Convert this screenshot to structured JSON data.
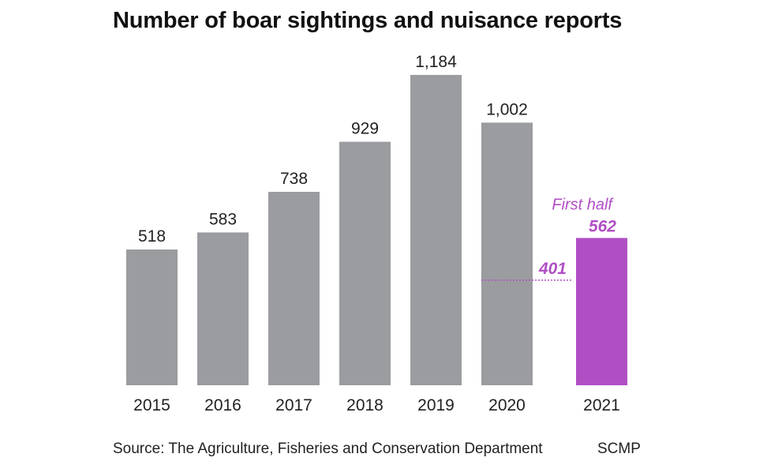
{
  "chart_data": {
    "type": "bar",
    "title": "Number of boar sightings and nuisance reports",
    "categories": [
      "2015",
      "2016",
      "2017",
      "2018",
      "2019",
      "2020",
      "2021"
    ],
    "values": [
      518,
      583,
      738,
      929,
      1184,
      1002,
      562
    ],
    "value_labels": [
      "518",
      "583",
      "738",
      "929",
      "1,184",
      "1,002",
      "562"
    ],
    "highlight": {
      "category": "2021",
      "label": "First half",
      "color": "#b04fc4"
    },
    "reference": {
      "category": "2020",
      "value": 401,
      "label": "401",
      "style": "dotted"
    },
    "bar_color": "#9b9c9f",
    "ylim": [
      0,
      1250
    ],
    "grid": false,
    "legend": "none"
  },
  "footer": {
    "source": "Source: The Agriculture, Fisheries and Conservation Department",
    "credit": "SCMP"
  }
}
